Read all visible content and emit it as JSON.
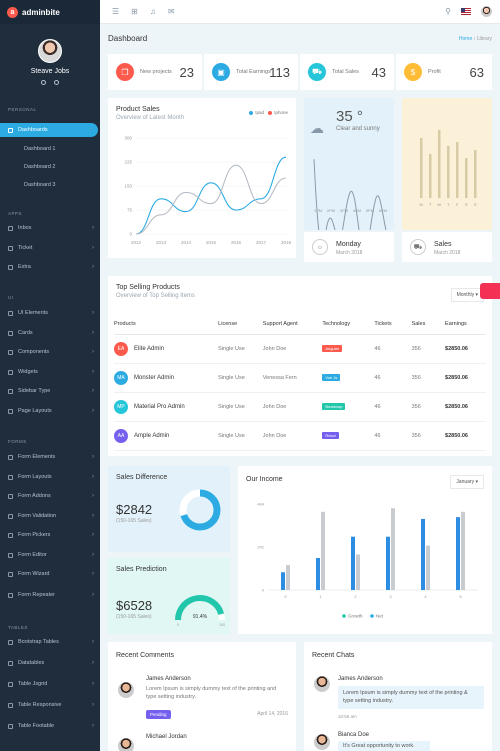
{
  "brand": {
    "name": "adminbite",
    "logo_letter": "a"
  },
  "profile": {
    "name": "Steave Jobs"
  },
  "sidebar": {
    "sections": [
      {
        "label": "PERSONAL",
        "top": 110
      },
      {
        "label": "APPS",
        "top": 214
      },
      {
        "label": "UI",
        "top": 298
      },
      {
        "label": "FORMS",
        "top": 442
      },
      {
        "label": "TABLES",
        "top": 628
      }
    ],
    "dashboard": "Dashboards",
    "sub_items": [
      "Dashboard 1",
      "Dashboard 2",
      "Dashboard 3"
    ],
    "items": [
      "Inbox",
      "Ticket",
      "Extra",
      "UI Elements",
      "Cards",
      "Components",
      "Widgets",
      "Sidebar Type",
      "Page Layouts",
      "Form Elements",
      "Form Layouts",
      "Form Addons",
      "Form Validation",
      "Form Pickers",
      "Form Editor",
      "Form Wizard",
      "Form Repeater",
      "Bootstrap Tables",
      "Datatables",
      "Table Jsgrid",
      "Table Responsive",
      "Table Footable"
    ]
  },
  "page": {
    "title": "Dashboard",
    "breadcrumb_home": "Home",
    "breadcrumb_current": "Library"
  },
  "stats": [
    {
      "label": "New projects",
      "value": "23",
      "color": "#fb5a4d"
    },
    {
      "label": "Total Earnings",
      "value": "113",
      "color": "#2cabe3"
    },
    {
      "label": "Total Sales",
      "value": "43",
      "color": "#26c6da"
    },
    {
      "label": "Profit",
      "value": "63",
      "color": "#ffbc34"
    }
  ],
  "product_sales": {
    "title": "Product Sales",
    "subtitle": "Overview of Latest Month",
    "legend": [
      "Ipad",
      "Iphone"
    ]
  },
  "chart_data": {
    "type": "line",
    "x": [
      "2012",
      "2013",
      "2014",
      "2015",
      "2016",
      "2017",
      "2018"
    ],
    "series": [
      {
        "name": "Ipad",
        "values": [
          0,
          110,
          70,
          160,
          75,
          110,
          240
        ]
      },
      {
        "name": "Iphone",
        "values": [
          0,
          60,
          130,
          95,
          215,
          95,
          175
        ]
      }
    ],
    "yticks": [
      "0",
      "75",
      "150",
      "225",
      "300"
    ],
    "ylim": [
      0,
      300
    ]
  },
  "weather": {
    "temp": "35 °",
    "cond": "Clear and sunny",
    "times": [
      "1PM",
      "2PM",
      "3PM",
      "4PM",
      "5PM",
      "6PM"
    ],
    "day": "Monday",
    "date": "March 2018"
  },
  "sales_widget": {
    "label": "Sales",
    "date": "March 2018",
    "days": [
      "M",
      "T",
      "W",
      "T",
      "F",
      "S",
      "S"
    ],
    "bar_values": [
      0.75,
      0.55,
      0.85,
      0.65,
      0.7,
      0.5,
      0.6
    ]
  },
  "top_selling": {
    "title": "Top Selling Products",
    "subtitle": "Overview of Top Selling Items",
    "filter": "Monthly",
    "headers": [
      "Products",
      "License",
      "Support Agent",
      "Technology",
      "Tickets",
      "Sales",
      "Earnings"
    ],
    "rows": [
      {
        "initials": "EA",
        "avatar_color": "#fb5a4d",
        "product": "Elite Admin",
        "license": "Single Use",
        "agent": "John Doe",
        "tech": "Angular",
        "tech_color": "#fb5a4d",
        "tickets": "46",
        "sales": "356",
        "earnings": "$2850.06"
      },
      {
        "initials": "MA",
        "avatar_color": "#2cabe3",
        "product": "Monster Admin",
        "license": "Single Use",
        "agent": "Venessa Fern",
        "tech": "Vue Js",
        "tech_color": "#2cabe3",
        "tickets": "46",
        "sales": "356",
        "earnings": "$2850.06"
      },
      {
        "initials": "MP",
        "avatar_color": "#26c6da",
        "product": "Material Pro Admin",
        "license": "Single Use",
        "agent": "John Doe",
        "tech": "Bootstrap",
        "tech_color": "#22c6ab",
        "tickets": "46",
        "sales": "356",
        "earnings": "$2850.06"
      },
      {
        "initials": "AA",
        "avatar_color": "#7460ee",
        "product": "Ample Admin",
        "license": "Single Use",
        "agent": "John Doe",
        "tech": "React",
        "tech_color": "#7460ee",
        "tickets": "46",
        "sales": "356",
        "earnings": "$2850.06"
      }
    ]
  },
  "sales_difference": {
    "title": "Sales Difference",
    "value": "$2842",
    "sub": "(150-165 Sales)",
    "fraction": 0.7
  },
  "sales_prediction": {
    "title": "Sales Prediction",
    "value": "$6528",
    "sub": "(150-165 Sales)",
    "percent": "91.4%",
    "fraction": 0.914,
    "min": "0",
    "max": "100"
  },
  "our_income": {
    "title": "Our Income",
    "filter": "January",
    "yticks": [
      "0",
      "242",
      "484"
    ],
    "ymax": 484,
    "categories": [
      "0",
      "1",
      "2",
      "3",
      "4",
      "5"
    ],
    "growth": [
      100,
      180,
      300,
      300,
      400,
      410
    ],
    "net": [
      140,
      440,
      200,
      460,
      250,
      440
    ],
    "legend": [
      "Growth",
      "Net"
    ]
  },
  "recent_comments": {
    "title": "Recent Comments",
    "items": [
      {
        "name": "James Anderson",
        "text": "Lorem Ipsum is simply dummy text of the printing and type setting industry.",
        "status": "Pending",
        "date": "April 14, 2016"
      },
      {
        "name": "Michael Jordan",
        "text": ""
      }
    ]
  },
  "recent_chats": {
    "title": "Recent Chats",
    "items": [
      {
        "name": "James Anderson",
        "text": "Lorem Ipsum is simply dummy text of the printing & type setting industry.",
        "time": "10:56 am"
      },
      {
        "name": "Bianca Doe",
        "text": "It's Great opportunity to work."
      }
    ]
  }
}
